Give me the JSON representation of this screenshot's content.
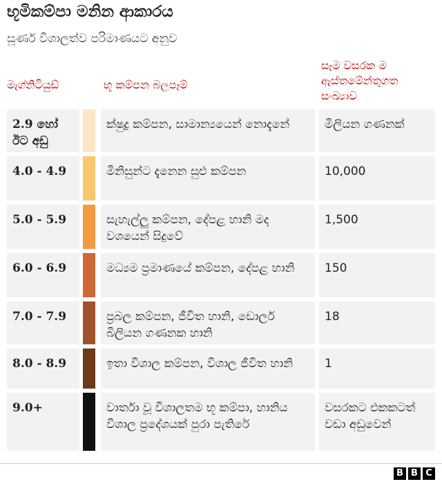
{
  "header": {
    "title": "භූමිකම්පා මනින ආකාරය",
    "subtitle": "සූර්ණ විශාලත්ව පරිමාණයට අනුව"
  },
  "table": {
    "columns": [
      "මැග්නිටියුඩ්",
      "භූ කම්පන බලපෑම්",
      "සෑම වසරක ම ඇස්තමේන්තුගත සංඛ්‍යාව"
    ],
    "rows": [
      {
        "magnitude": "2.9 හෝ ඊට අඩු",
        "color": "#fde6c8",
        "effect": "ක්ෂුද්‍ර කම්පන, සාමාන්‍යයෙන් නොදැනේ",
        "estimate": "මිලියන ගණනක්"
      },
      {
        "magnitude": "4.0 - 4.9",
        "color": "#f8c76e",
        "effect": "මිනිසුන්ට දැනෙන සුළු කම්පන",
        "estimate": "10,000"
      },
      {
        "magnitude": "5.0 - 5.9",
        "color": "#f49a43",
        "effect": "සැහැල්ලු කම්පන, දේපළ හානි මද වශයෙන් සිදුවේ",
        "estimate": "1,500"
      },
      {
        "magnitude": "6.0 - 6.9",
        "color": "#cf6836",
        "effect": "මධ්‍යම ප්‍රමාණයේ කම්පන, දේපළ හානි",
        "estimate": "150"
      },
      {
        "magnitude": "7.0 - 7.9",
        "color": "#9f532d",
        "effect": "ප්‍රබල කම්පන, ජීවිත හානි, ඩොලර් බිලියන ගණනක හානි",
        "estimate": "18"
      },
      {
        "magnitude": "8.0 - 8.9",
        "color": "#6d3a1b",
        "effect": "ඉතා විශාල කම්පන, විශාල ජීවිත හානි",
        "estimate": "1"
      },
      {
        "magnitude": "9.0+",
        "color": "#111111",
        "effect": "වාර්තා වූ විශාලතම භූ කම්පා, හානිය විශාල ප්‍රදේශයක් පුරා පැතිරේ",
        "estimate": "වසරකට එකකටත් වඩා අඩුවෙන්"
      }
    ]
  },
  "footer": {
    "logo": [
      "B",
      "B",
      "C"
    ]
  }
}
